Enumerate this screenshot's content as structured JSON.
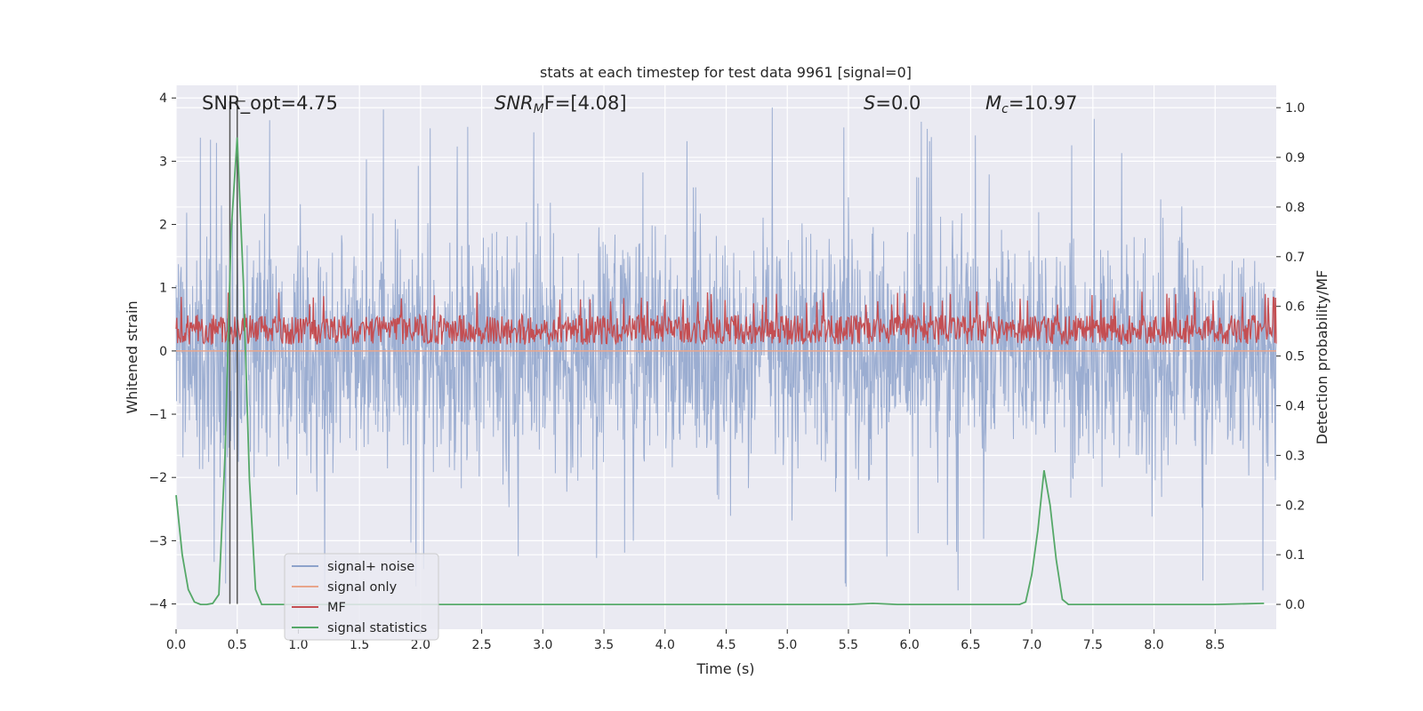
{
  "chart_data": {
    "type": "line",
    "title": "stats at each timestep for test data 9961 [signal=0]",
    "xlabel": "Time (s)",
    "ylabel": "Whitened strain",
    "ylabel_right": "Detection probability/MF",
    "xlim": [
      0.0,
      9.0
    ],
    "ylim": [
      -4.4,
      4.2
    ],
    "ylim_right": [
      -0.05,
      1.045
    ],
    "x_ticks": [
      "0.0",
      "0.5",
      "1.0",
      "1.5",
      "2.0",
      "2.5",
      "3.0",
      "3.5",
      "4.0",
      "4.5",
      "5.0",
      "5.5",
      "6.0",
      "6.5",
      "7.0",
      "7.5",
      "8.0",
      "8.5"
    ],
    "x_tick_values": [
      0.0,
      0.5,
      1.0,
      1.5,
      2.0,
      2.5,
      3.0,
      3.5,
      4.0,
      4.5,
      5.0,
      5.5,
      6.0,
      6.5,
      7.0,
      7.5,
      8.0,
      8.5
    ],
    "y_ticks": [
      "−4",
      "−3",
      "−2",
      "−1",
      "0",
      "1",
      "2",
      "3",
      "4"
    ],
    "y_tick_values": [
      -4,
      -3,
      -2,
      -1,
      0,
      1,
      2,
      3,
      4
    ],
    "y_ticks_right": [
      "0.0",
      "0.1",
      "0.2",
      "0.3",
      "0.4",
      "0.5",
      "0.6",
      "0.7",
      "0.8",
      "0.9",
      "1.0"
    ],
    "y_tick_values_right": [
      0.0,
      0.1,
      0.2,
      0.3,
      0.4,
      0.5,
      0.6,
      0.7,
      0.8,
      0.9,
      1.0
    ],
    "grid": true,
    "legend_position": "lower-left",
    "series": [
      {
        "name": "signal+ noise",
        "axis": "left",
        "style": "noise",
        "color": "#8da2cb",
        "values": "dense whitened strain noise, mostly between -2 and 2.5 with spikes to about 3.8 and -4"
      },
      {
        "name": "signal only",
        "axis": "left",
        "style": "flat",
        "color": "#e8a58b",
        "x": [
          0.0,
          9.0
        ],
        "y": [
          0.0,
          0.0
        ]
      },
      {
        "name": "MF",
        "axis": "right",
        "style": "band",
        "color": "#c44e52",
        "values": "dense matched-filter output fluctuating between about 0.51 and 0.62 on the right axis"
      },
      {
        "name": "signal statistics",
        "axis": "right",
        "color": "#55a868",
        "x": [
          0.0,
          0.05,
          0.1,
          0.15,
          0.2,
          0.25,
          0.3,
          0.35,
          0.4,
          0.45,
          0.5,
          0.55,
          0.6,
          0.65,
          0.7,
          0.8,
          1.0,
          2.0,
          3.0,
          4.0,
          5.0,
          5.5,
          5.7,
          5.9,
          6.5,
          6.9,
          6.95,
          7.0,
          7.05,
          7.1,
          7.15,
          7.2,
          7.25,
          7.3,
          7.5,
          8.0,
          8.5,
          8.9
        ],
        "y": [
          0.22,
          0.1,
          0.03,
          0.005,
          0.0,
          0.0,
          0.002,
          0.02,
          0.3,
          0.75,
          0.94,
          0.65,
          0.25,
          0.03,
          0.0,
          0.0,
          0.0,
          0.0,
          0.0,
          0.0,
          0.0,
          0.0,
          0.002,
          0.0,
          0.0,
          0.0,
          0.005,
          0.06,
          0.15,
          0.27,
          0.2,
          0.09,
          0.01,
          0.0,
          0.0,
          0.0,
          0.0,
          0.002
        ]
      }
    ],
    "vlines": [
      {
        "x": 0.44,
        "color": "#555555"
      },
      {
        "x": 0.5,
        "color": "#555555"
      }
    ],
    "annotations": [
      {
        "label": "SNR_opt=4.75"
      },
      {
        "sym": "SNR",
        "sub": "M",
        "rest": "F=[4.08]"
      },
      {
        "sym": "S",
        "rest": "=0.0"
      },
      {
        "sym": "M",
        "sub": "c",
        "rest": "=10.97"
      }
    ]
  }
}
